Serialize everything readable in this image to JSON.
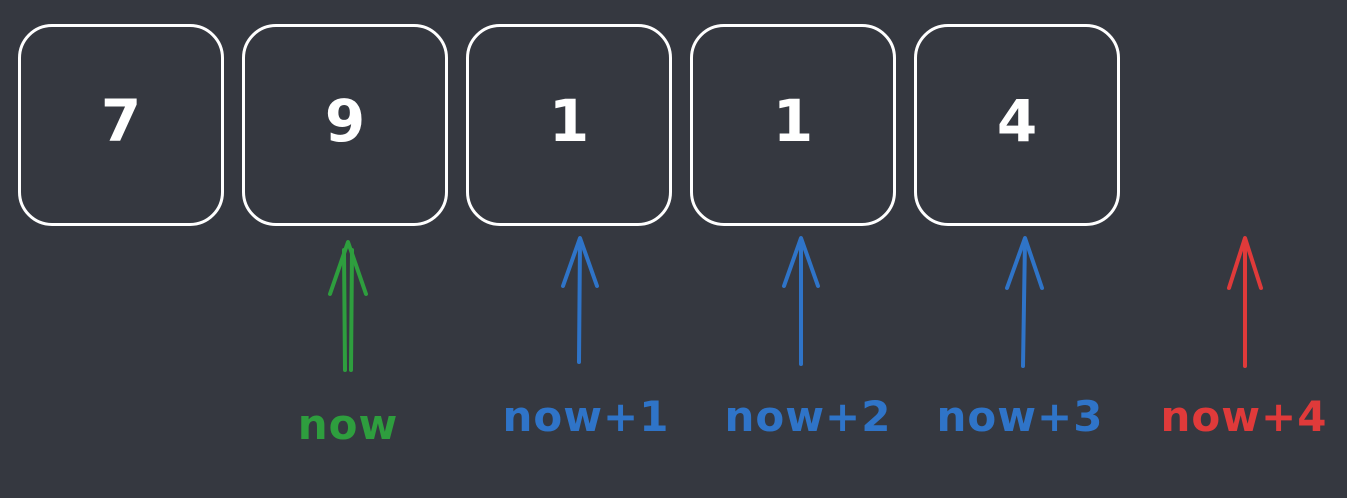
{
  "array": {
    "cells": [
      {
        "value": "7"
      },
      {
        "value": "9"
      },
      {
        "value": "1"
      },
      {
        "value": "1"
      },
      {
        "value": "4"
      }
    ]
  },
  "pointers": [
    {
      "label": "now",
      "color": "#2e9e3e"
    },
    {
      "label": "now+1",
      "color": "#2f74c8"
    },
    {
      "label": "now+2",
      "color": "#2f74c8"
    },
    {
      "label": "now+3",
      "color": "#2f74c8"
    },
    {
      "label": "now+4",
      "color": "#e03a3a"
    }
  ]
}
